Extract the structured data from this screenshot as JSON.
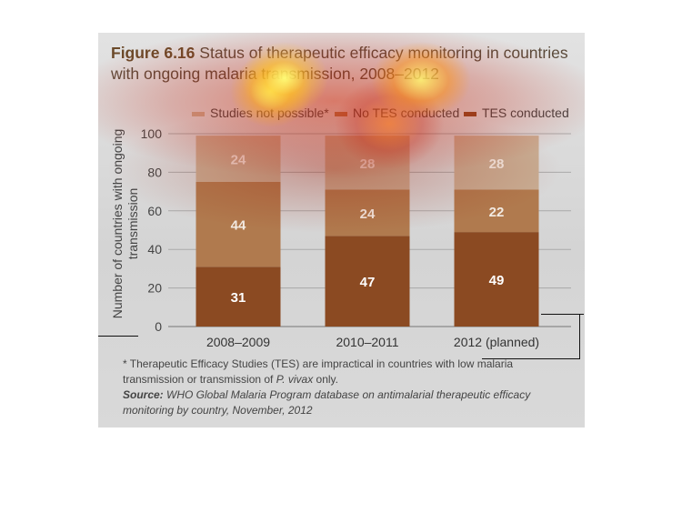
{
  "figure": {
    "number": "Figure 6.16",
    "title": "Status of therapeutic efficacy monitoring in countries with ongoing malaria transmission, 2008–2012"
  },
  "chart_data": {
    "type": "bar",
    "stacked": true,
    "categories": [
      "2008–2009",
      "2010–2011",
      "2012 (planned)"
    ],
    "series": [
      {
        "name": "TES conducted",
        "values": [
          31,
          47,
          49
        ],
        "color": "#8b4a22"
      },
      {
        "name": "No TES conducted",
        "values": [
          44,
          24,
          22
        ],
        "color": "#b07a4e"
      },
      {
        "name": "Studies not possible*",
        "values": [
          24,
          28,
          28
        ],
        "color": "#c8ad93"
      }
    ],
    "ylabel": "Number of countries with ongoing transmission",
    "ylim": [
      0,
      100
    ],
    "yticks": [
      0,
      20,
      40,
      60,
      80,
      100
    ],
    "grid": true,
    "legend_position": "top"
  },
  "notes": {
    "footnote_prefix": "* Therapeutic Efficacy Studies (TES) are impractical in countries with low malaria transmission or transmission of ",
    "footnote_species": "P. vivax",
    "footnote_suffix": " only.",
    "source_label": "Source:",
    "source_text": " WHO Global Malaria Program database on antimalarial therapeutic efficacy monitoring by country, November, 2012"
  }
}
